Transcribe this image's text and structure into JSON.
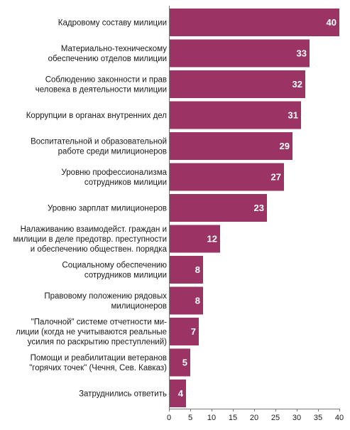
{
  "chart_data": {
    "type": "bar",
    "orientation": "horizontal",
    "title": "",
    "xlabel": "",
    "ylabel": "",
    "xlim": [
      0,
      40
    ],
    "xticks": [
      0,
      5,
      10,
      15,
      20,
      25,
      30,
      35,
      40
    ],
    "grid": false,
    "legend": false,
    "bar_color": "#9B3465",
    "categories": [
      [
        "Кадровому составу милиции"
      ],
      [
        "Материально-техническому",
        "обеспечению отделов милиции"
      ],
      [
        "Соблюдению законности и прав",
        "человека в деятельности милиции"
      ],
      [
        "Коррупции в органах внутренних дел"
      ],
      [
        "Воспитательной и образовательной",
        "работе среди милиционеров"
      ],
      [
        "Уровню профессионализма",
        "сотрудников милиции"
      ],
      [
        "Уровню зарплат милиционеров"
      ],
      [
        "Налаживанию взаимодейст. граждан и",
        "милиции в деле предотвр. преступности",
        "и обеспечению обществен. порядка"
      ],
      [
        "Социальному обеспечению",
        "сотрудников милиции"
      ],
      [
        "Правовому положению рядовых",
        "милиционеров"
      ],
      [
        "\"Палочной\" системе отчетности ми-",
        "лиции (когда не учитываются реальные",
        "усилия по раскрытию преступлений)"
      ],
      [
        "Помощи и реабилитации ветеранов",
        "\"горячих точек\" (Чечня, Сев. Кавказ)"
      ],
      [
        "Затруднились ответить"
      ]
    ],
    "values": [
      40,
      33,
      32,
      31,
      29,
      27,
      23,
      12,
      8,
      8,
      7,
      5,
      4
    ]
  }
}
